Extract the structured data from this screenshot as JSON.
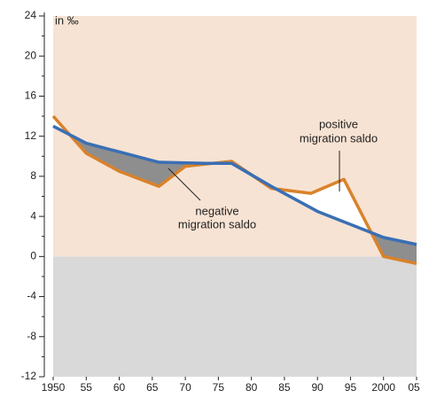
{
  "chart_data": {
    "type": "line",
    "annotations": [
      "in ‰",
      "positive",
      "migration saldo",
      "negative",
      "migration saldo"
    ],
    "series": [
      {
        "color": "#d9822b",
        "x": [
          1950,
          1955,
          1960,
          1966,
          1970,
          1977,
          1983,
          1989,
          1994,
          2000,
          2005
        ],
        "values": [
          14,
          10.3,
          8.5,
          7,
          9,
          9.5,
          6.8,
          6.3,
          7.7,
          0,
          -0.7
        ]
      },
      {
        "color": "#3a6fb5",
        "x": [
          1950,
          1955,
          1966,
          1973,
          1977,
          1983,
          1990,
          2000,
          2005
        ],
        "values": [
          13,
          11.3,
          9.4,
          9.3,
          9.3,
          7,
          4.5,
          1.9,
          1.2
        ]
      }
    ],
    "xlim": [
      1950,
      2005
    ],
    "xticks": [
      1950,
      {
        "value": 1955,
        "label": "55"
      },
      {
        "value": 1960,
        "label": "60"
      },
      {
        "value": 1965,
        "label": "65"
      },
      {
        "value": 1970,
        "label": "70"
      },
      {
        "value": 1975,
        "label": "75"
      },
      {
        "value": 1980,
        "label": "80"
      },
      {
        "value": 1985,
        "label": "85"
      },
      {
        "value": 1990,
        "label": "90"
      },
      {
        "value": 1995,
        "label": "95"
      },
      2000,
      {
        "value": 2005,
        "label": "05"
      }
    ],
    "ylim": [
      -12,
      24
    ],
    "yticks": [
      -12,
      -8,
      -4,
      0,
      4,
      8,
      12,
      16,
      20,
      24
    ],
    "positive_color": "#f7e3d3",
    "negative_color": "#d9d9d9",
    "between_below_color": "#8e8e8e",
    "between_above_color": "#ffffff"
  }
}
